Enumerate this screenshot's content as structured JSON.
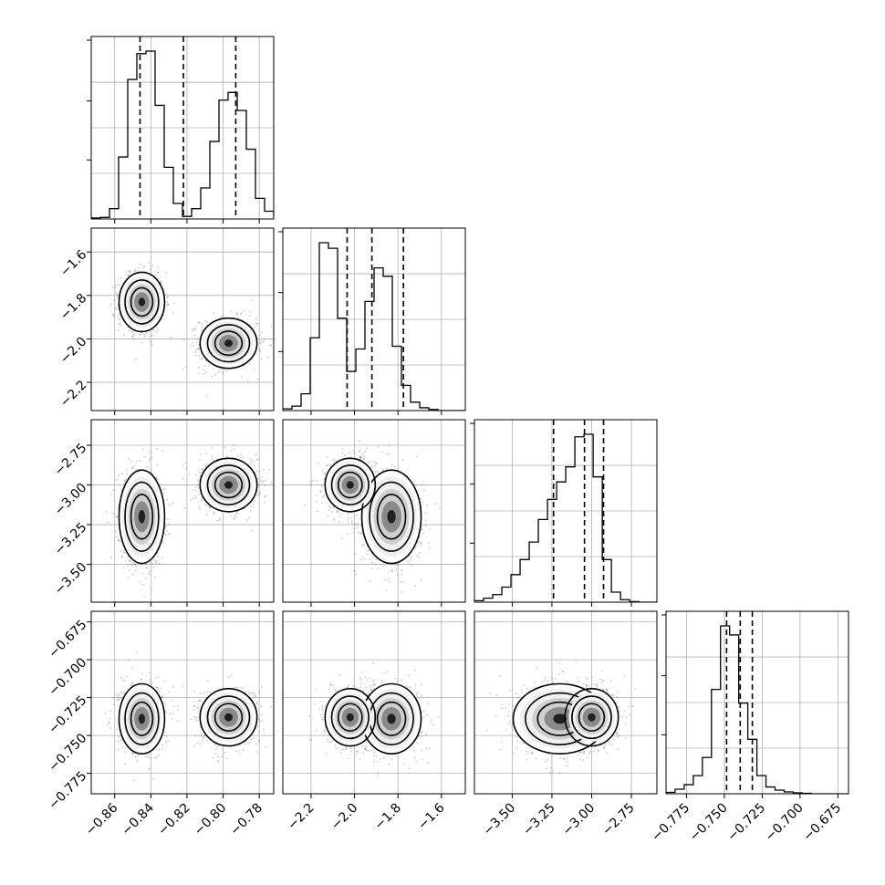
{
  "chart_data": {
    "type": "corner",
    "parameters": 4,
    "grid": true,
    "axes": [
      {
        "index": 0,
        "range": [
          -0.873,
          -0.772
        ],
        "ticks": [
          "−0.86",
          "−0.84",
          "−0.82",
          "−0.80",
          "−0.78"
        ],
        "tick_values": [
          -0.86,
          -0.84,
          -0.82,
          -0.8,
          -0.78
        ],
        "quantiles": [
          -0.846,
          -0.822,
          -0.793
        ]
      },
      {
        "index": 1,
        "range": [
          -2.33,
          -1.49
        ],
        "ticks": [
          "−2.2",
          "−2.0",
          "−1.8",
          "−1.6"
        ],
        "tick_values": [
          -2.2,
          -2.0,
          -1.8,
          -1.6
        ],
        "quantiles": [
          -2.034,
          -1.92,
          -1.775
        ]
      },
      {
        "index": 2,
        "range": [
          -3.738,
          -2.589
        ],
        "ticks": [
          "−3.50",
          "−3.25",
          "−3.00",
          "−2.75"
        ],
        "tick_values": [
          -3.5,
          -3.25,
          -3.0,
          -2.75
        ],
        "quantiles": [
          -3.24,
          -3.045,
          -2.925
        ]
      },
      {
        "index": 3,
        "range": [
          -0.7885,
          -0.668
        ],
        "ticks": [
          "−0.775",
          "−0.750",
          "−0.725",
          "−0.700",
          "−0.675"
        ],
        "tick_values": [
          -0.775,
          -0.75,
          -0.725,
          -0.7,
          -0.675
        ],
        "quantiles": [
          -0.7485,
          -0.7395,
          -0.7315
        ]
      }
    ],
    "histograms": [
      {
        "param": 0,
        "edges_start": -0.873,
        "bin_width": 0.00505,
        "counts": [
          2,
          3,
          20,
          120,
          270,
          320,
          325,
          220,
          100,
          30,
          5,
          20,
          60,
          150,
          230,
          245,
          210,
          135,
          40,
          15,
          5
        ]
      },
      {
        "param": 1,
        "edges_start": -2.33,
        "bin_width": 0.042,
        "counts": [
          3,
          8,
          30,
          130,
          300,
          290,
          165,
          70,
          110,
          195,
          255,
          240,
          115,
          45,
          15,
          5,
          2,
          0,
          0,
          0
        ]
      },
      {
        "param": 2,
        "edges_start": -3.738,
        "bin_width": 0.0575,
        "counts": [
          3,
          8,
          15,
          30,
          55,
          85,
          120,
          165,
          205,
          240,
          270,
          330,
          335,
          250,
          85,
          20,
          5,
          1,
          0,
          0
        ]
      },
      {
        "param": 3,
        "edges_start": -0.7885,
        "bin_width": 0.006,
        "counts": [
          3,
          10,
          20,
          40,
          80,
          230,
          370,
          350,
          200,
          120,
          40,
          15,
          8,
          4,
          2,
          1,
          0,
          0,
          0,
          0
        ]
      }
    ],
    "modes": [
      {
        "weight": 0.5,
        "mean": [
          -0.845,
          -1.83,
          -3.2,
          -0.739
        ],
        "sd": [
          0.006,
          0.065,
          0.14,
          0.011
        ]
      },
      {
        "weight": 0.5,
        "mean": [
          -0.797,
          -2.02,
          -3.0,
          -0.738
        ],
        "sd": [
          0.0075,
          0.055,
          0.08,
          0.009
        ]
      }
    ]
  }
}
